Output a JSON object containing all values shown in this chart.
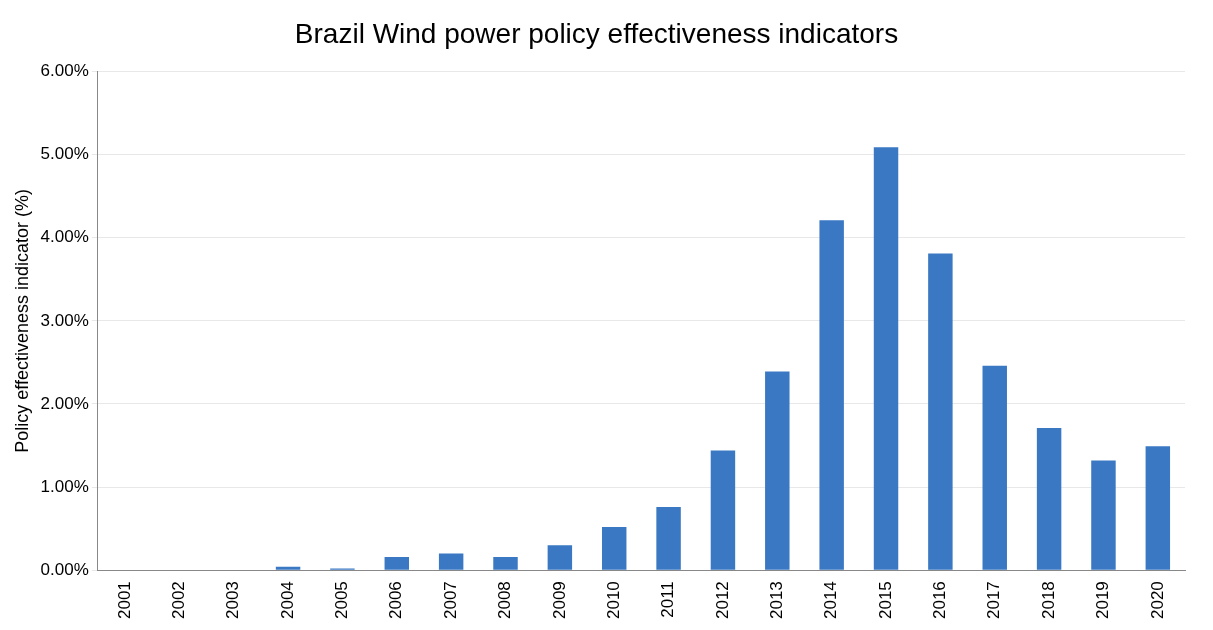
{
  "chart_data": {
    "type": "bar",
    "title": "Brazil Wind power policy effectiveness indicators",
    "ylabel": "Policy effectiveness indicator (%)",
    "categories": [
      "2001",
      "2002",
      "2003",
      "2004",
      "2005",
      "2006",
      "2007",
      "2008",
      "2009",
      "2010",
      "2011",
      "2012",
      "2013",
      "2014",
      "2015",
      "2016",
      "2017",
      "2018",
      "2019",
      "2020"
    ],
    "values": [
      0,
      0,
      0,
      0.04,
      0.02,
      0.16,
      0.2,
      0.16,
      0.3,
      0.52,
      0.76,
      1.44,
      2.39,
      4.21,
      5.09,
      3.81,
      2.46,
      1.71,
      1.32,
      1.49
    ],
    "color": "#3a78c4",
    "ylim": [
      0,
      6
    ],
    "yticks": [
      {
        "value": 0,
        "label": "0.00%"
      },
      {
        "value": 1,
        "label": "1.00%"
      },
      {
        "value": 2,
        "label": "2.00%"
      },
      {
        "value": 3,
        "label": "3.00%"
      },
      {
        "value": 4,
        "label": "4.00%"
      },
      {
        "value": 5,
        "label": "5.00%"
      },
      {
        "value": 6,
        "label": "6.00%"
      }
    ],
    "grid": "y",
    "legend": false
  }
}
